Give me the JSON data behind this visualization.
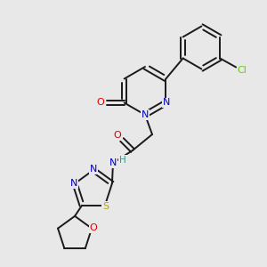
{
  "background_color": "#e8e8e8",
  "bond_color": "#1a1a1a",
  "atom_colors": {
    "N": "#0000cc",
    "O": "#dd0000",
    "S": "#aaaa00",
    "Cl": "#66cc00",
    "H": "#339988",
    "C": "#1a1a1a"
  },
  "figsize": [
    3.0,
    3.0
  ],
  "dpi": 100
}
